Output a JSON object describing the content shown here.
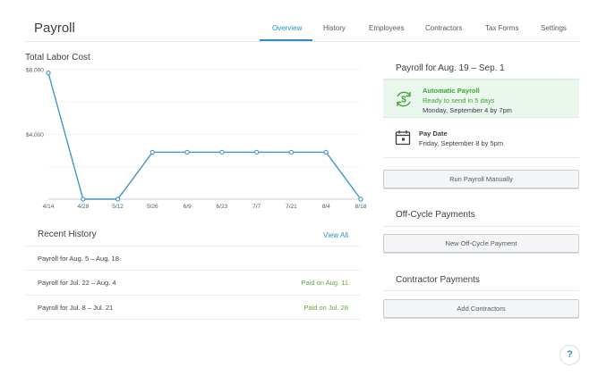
{
  "header": {
    "title": "Payroll",
    "tabs": [
      {
        "label": "Overview",
        "active": true
      },
      {
        "label": "History",
        "active": false
      },
      {
        "label": "Employees",
        "active": false
      },
      {
        "label": "Contractors",
        "active": false
      },
      {
        "label": "Tax Forms",
        "active": false
      },
      {
        "label": "Settings",
        "active": false
      }
    ],
    "accent_color": "#2b8fc2"
  },
  "chart": {
    "title": "Total Labor Cost"
  },
  "chart_data": {
    "type": "line",
    "title": "Total Labor Cost",
    "xlabel": "",
    "ylabel": "",
    "x": [
      "4/14",
      "4/28",
      "5/12",
      "5/26",
      "6/9",
      "6/23",
      "7/7",
      "7/21",
      "8/4",
      "8/18"
    ],
    "series": [
      {
        "values": [
          7800,
          0,
          0,
          2900,
          2900,
          2900,
          2900,
          2900,
          2900,
          0
        ]
      }
    ],
    "yticks": [
      "$8,000",
      "$4,000"
    ],
    "ylim": [
      0,
      8000
    ],
    "grid": true,
    "line_color": "#3f97c9"
  },
  "recent_history": {
    "title": "Recent History",
    "view_all": "View All",
    "rows": [
      {
        "period": "Payroll for Aug. 5 – Aug. 18",
        "status": ""
      },
      {
        "period": "Payroll for Jul. 22 – Aug. 4",
        "status": "Paid on Aug. 11"
      },
      {
        "period": "Payroll for Jul. 8 – Jul. 21",
        "status": "Paid on Jul. 28"
      }
    ]
  },
  "payroll_panel": {
    "title": "Payroll for Aug. 19 – Sep. 1",
    "auto_title": "Automatic Payroll",
    "auto_status": "Ready to send in 5 days",
    "auto_when": "Monday, September 4 by 7pm",
    "auto_icon": "dollar-cycle-icon",
    "pay_date_label": "Pay Date",
    "pay_date_value": "Friday, September 8 by 5pm",
    "pay_date_icon": "calendar-icon",
    "run_manually": "Run Payroll Manually",
    "success_color": "#44a33a"
  },
  "off_cycle": {
    "title": "Off-Cycle Payments",
    "button": "New Off-Cycle Payment"
  },
  "contractor_payments": {
    "title": "Contractor Payments",
    "button": "Add Contractors"
  },
  "help": {
    "label": "?",
    "icon": "help-icon"
  }
}
